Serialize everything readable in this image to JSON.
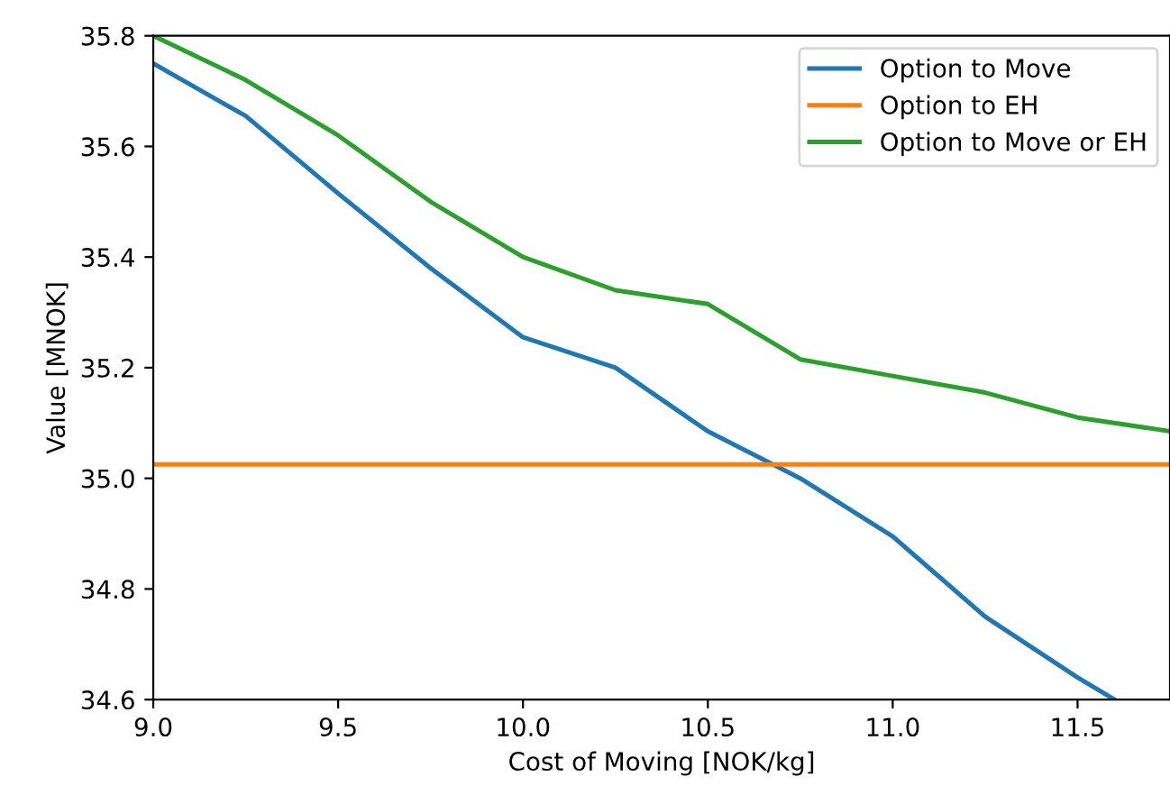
{
  "chart_data": {
    "type": "line",
    "xlabel": "Cost of Moving [NOK/kg]",
    "ylabel": "Value [MNOK]",
    "xlim": [
      9.0,
      11.75
    ],
    "xticks": [
      {
        "value": 9,
        "label": "9.0"
      },
      9.5,
      {
        "value": 10,
        "label": "10.0"
      },
      10.5,
      {
        "value": 11,
        "label": "11.0"
      },
      11.5
    ],
    "ylim": [
      34.6,
      35.8
    ],
    "yticks": [
      34.6,
      34.8,
      {
        "value": 35,
        "label": "35.0"
      },
      35.2,
      35.4,
      35.6,
      35.8
    ],
    "grid": false,
    "legend": "top right",
    "line_style": "solid",
    "marker": "none",
    "series": [
      {
        "name": "Option to Move",
        "color": "#1f77b4",
        "x": [
          9.0,
          9.25,
          9.5,
          9.75,
          10.0,
          10.25,
          10.5,
          10.75,
          11.0,
          11.25,
          11.5,
          11.6
        ],
        "values": [
          35.75,
          35.655,
          35.515,
          35.38,
          35.255,
          35.2,
          35.085,
          35.0,
          34.895,
          34.75,
          34.64,
          34.6
        ]
      },
      {
        "name": "Option to EH",
        "color": "#ff7f0e",
        "x": [
          9.0,
          11.75
        ],
        "values": [
          35.025,
          35.025
        ]
      },
      {
        "name": "Option to Move or EH",
        "color": "#2ca02c",
        "x": [
          9.0,
          9.25,
          9.5,
          9.75,
          10.0,
          10.25,
          10.5,
          10.75,
          11.0,
          11.25,
          11.5,
          11.75
        ],
        "values": [
          35.8,
          35.72,
          35.62,
          35.5,
          35.4,
          35.34,
          35.315,
          35.215,
          35.185,
          35.155,
          35.11,
          35.085
        ]
      }
    ]
  }
}
